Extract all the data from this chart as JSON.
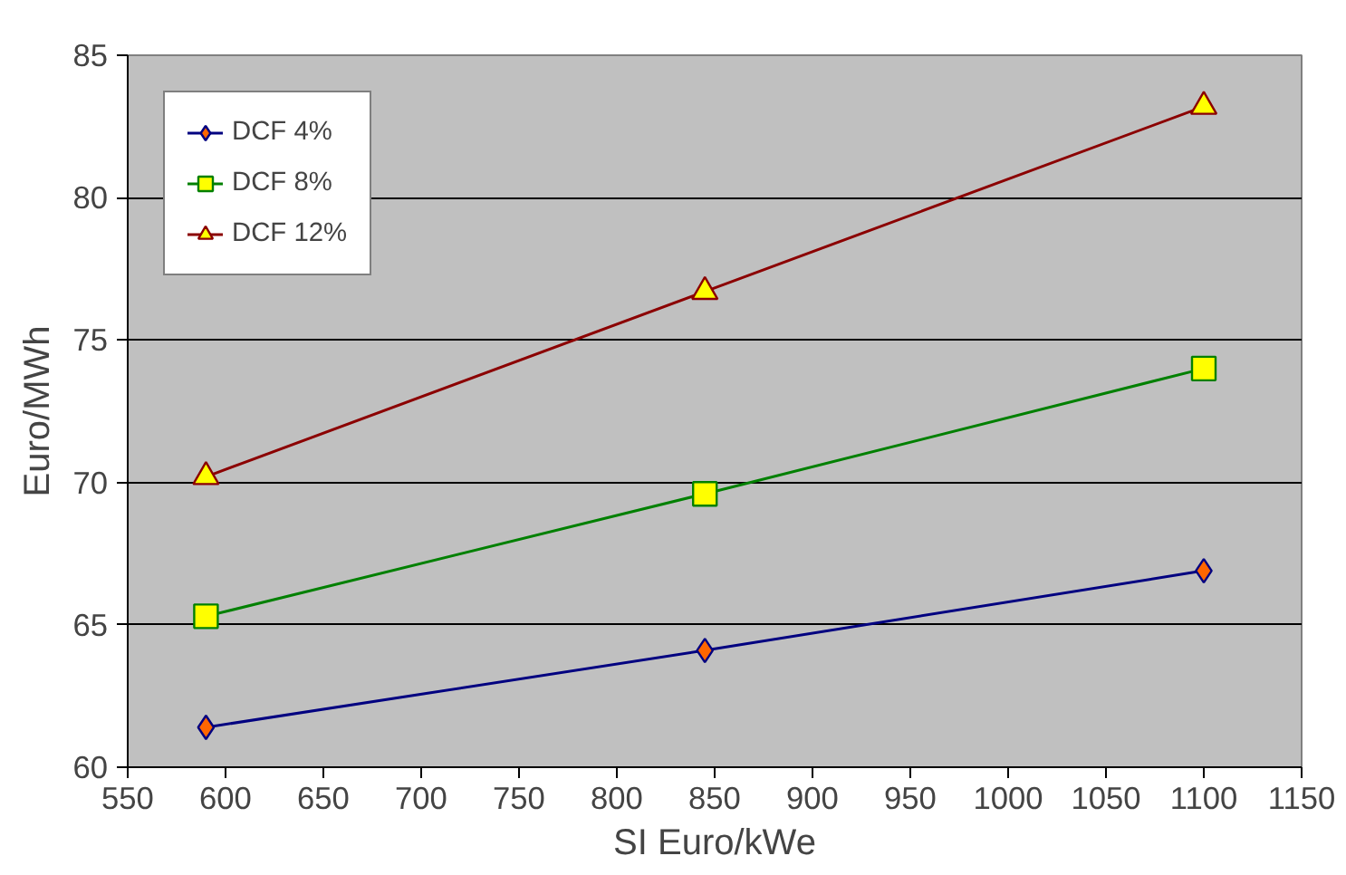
{
  "chart_data": {
    "type": "line",
    "xlabel": "SI Euro/kWe",
    "ylabel": "Euro/MWh",
    "x": [
      590,
      845,
      1100
    ],
    "series": [
      {
        "name": "DCF 4%",
        "color": "#000080",
        "marker": "diamond",
        "values": [
          61.4,
          64.1,
          66.9
        ]
      },
      {
        "name": "DCF 8%",
        "color": "#008000",
        "marker": "square",
        "values": [
          65.3,
          69.6,
          74.0
        ]
      },
      {
        "name": "DCF 12%",
        "color": "#8b0000",
        "marker": "triangle",
        "values": [
          70.2,
          76.7,
          83.2
        ]
      }
    ],
    "xlim": [
      550,
      1150
    ],
    "xticks": [
      550,
      600,
      650,
      700,
      750,
      800,
      850,
      900,
      950,
      1000,
      1050,
      1100,
      1150
    ],
    "ylim": [
      60,
      85
    ],
    "yticks": [
      60,
      65,
      70,
      75,
      80,
      85
    ],
    "grid": "y",
    "legend": "top left",
    "line_style": "solid"
  }
}
